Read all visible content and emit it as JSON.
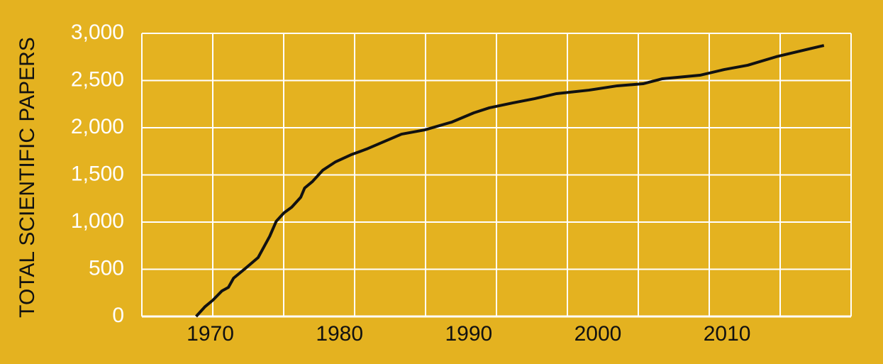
{
  "chart_data": {
    "type": "line",
    "y_label": "TOTAL SCIENTIFIC PAPERS",
    "xlim": [
      1964.7,
      2019.6
    ],
    "xticks": [
      1970,
      1980,
      1990,
      2000,
      2010
    ],
    "ylim": [
      0,
      3000
    ],
    "yticks": [
      0,
      500,
      {
        "value": 1000,
        "label": "1,000"
      },
      {
        "value": 1500,
        "label": "1,500"
      },
      {
        "value": 2000,
        "label": "2,000"
      },
      {
        "value": 2500,
        "label": "2,500"
      },
      {
        "value": 3000,
        "label": "3,000"
      }
    ],
    "grid": true,
    "x": [
      1968.9,
      1969.6,
      1970.2,
      1970.9,
      1971.4,
      1971.8,
      1972.8,
      1973.7,
      1974.6,
      1975.1,
      1975.7,
      1976.3,
      1977.0,
      1977.3,
      1977.9,
      1978.7,
      1979.7,
      1980.9,
      1982.1,
      1983.4,
      1984.8,
      1986.6,
      1988.7,
      1990.4,
      1991.6,
      1993.4,
      1995.1,
      1996.8,
      1999.3,
      2001.5,
      2003.5,
      2005.0,
      2007.9,
      2009.8,
      2011.6,
      2013.8,
      2017.5
    ],
    "series": [
      {
        "color": "#111111",
        "values": [
          0,
          105,
          173,
          271,
          308,
          406,
          519,
          624,
          850,
          1008,
          1098,
          1158,
          1263,
          1361,
          1429,
          1549,
          1639,
          1714,
          1774,
          1850,
          1932,
          1977,
          2060,
          2158,
          2211,
          2263,
          2308,
          2361,
          2398,
          2444,
          2466,
          2519,
          2556,
          2617,
          2662,
          2752,
          2872
        ]
      }
    ]
  }
}
